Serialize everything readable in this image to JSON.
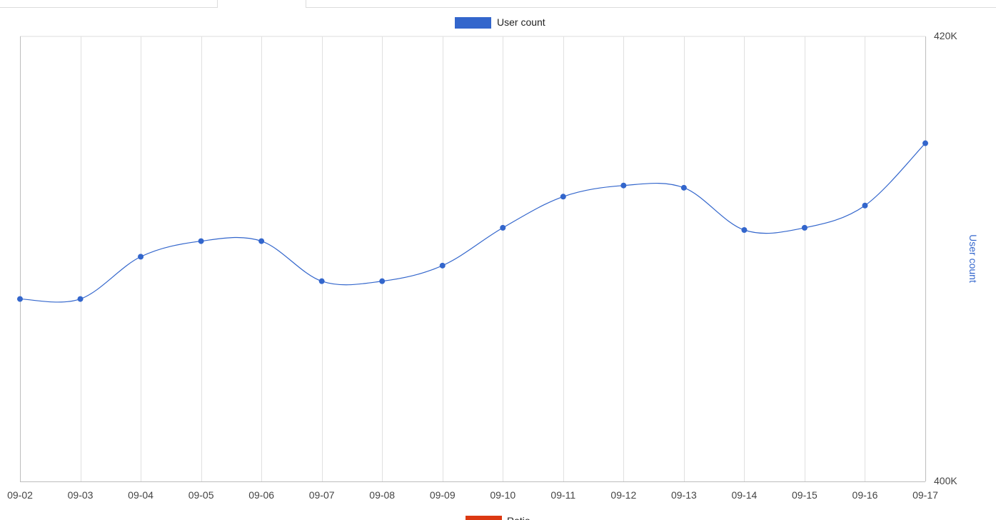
{
  "tabs": [
    {
      "label": ""
    },
    {
      "label": ""
    },
    {
      "label": ""
    }
  ],
  "chart_data": {
    "type": "line",
    "categories": [
      "09-02",
      "09-03",
      "09-04",
      "09-05",
      "09-06",
      "09-07",
      "09-08",
      "09-09",
      "09-10",
      "09-11",
      "09-12",
      "09-13",
      "09-14",
      "09-15",
      "09-16",
      "09-17"
    ],
    "series": [
      {
        "name": "User count",
        "color": "#3366cc",
        "values": [
          408200,
          408200,
          410100,
          410800,
          410800,
          409000,
          409000,
          409700,
          411400,
          412800,
          413300,
          413200,
          411300,
          411400,
          412400,
          415200
        ]
      }
    ],
    "y_axis": {
      "side": "right",
      "title": "User count",
      "min": 400000,
      "max": 420000,
      "tick_labels": [
        "420K",
        "400K"
      ]
    },
    "legend": {
      "position": "top",
      "entries": [
        "User count"
      ]
    },
    "second_legend_entry": {
      "label": "Ratio",
      "color": "#dc3912"
    },
    "grid": true,
    "smooth": true,
    "marker": "circle"
  }
}
